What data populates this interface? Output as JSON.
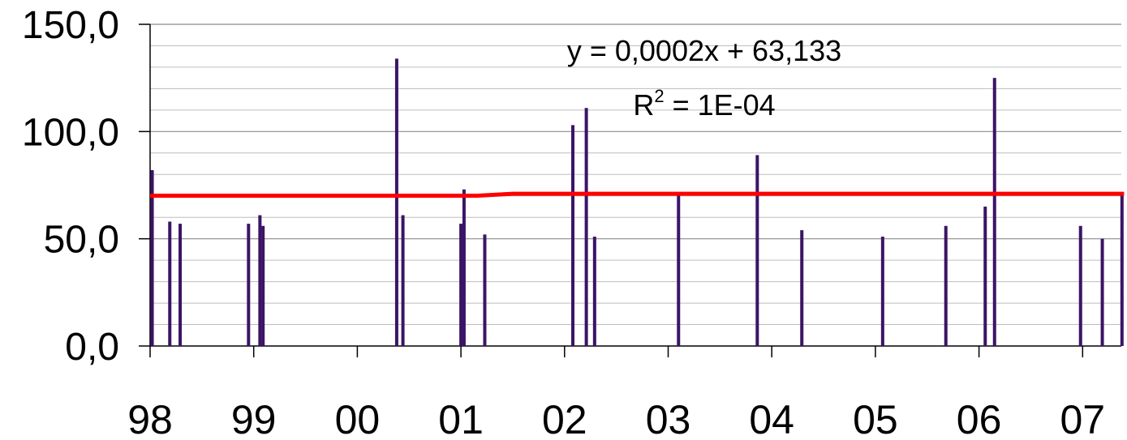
{
  "chart_data": {
    "type": "bar",
    "title": "",
    "xlabel": "",
    "ylabel": "",
    "ylim": [
      0,
      150
    ],
    "y_ticks": [
      {
        "value": 0,
        "label": "0,0"
      },
      {
        "value": 50,
        "label": "50,0"
      },
      {
        "value": 100,
        "label": "100,0"
      },
      {
        "value": 150,
        "label": "150,0"
      }
    ],
    "minor_grid_step": 10,
    "x_range": [
      1998,
      2007.4
    ],
    "x_ticks": [
      {
        "value": 1998,
        "label": "98"
      },
      {
        "value": 1999,
        "label": "99"
      },
      {
        "value": 2000,
        "label": "00"
      },
      {
        "value": 2001,
        "label": "01"
      },
      {
        "value": 2002,
        "label": "02"
      },
      {
        "value": 2003,
        "label": "03"
      },
      {
        "value": 2004,
        "label": "04"
      },
      {
        "value": 2005,
        "label": "05"
      },
      {
        "value": 2006,
        "label": "06"
      },
      {
        "value": 2007,
        "label": "07"
      }
    ],
    "grid": true,
    "bar_color": "#3b1466",
    "trend_color": "#ff0000",
    "points": [
      {
        "x": 1998.02,
        "y": 82
      },
      {
        "x": 1998.19,
        "y": 58
      },
      {
        "x": 1998.29,
        "y": 57
      },
      {
        "x": 1998.95,
        "y": 57
      },
      {
        "x": 1999.06,
        "y": 61
      },
      {
        "x": 1999.09,
        "y": 56
      },
      {
        "x": 2000.38,
        "y": 134
      },
      {
        "x": 2000.44,
        "y": 61
      },
      {
        "x": 2001.0,
        "y": 57
      },
      {
        "x": 2001.03,
        "y": 73
      },
      {
        "x": 2001.23,
        "y": 52
      },
      {
        "x": 2002.08,
        "y": 103
      },
      {
        "x": 2002.21,
        "y": 111
      },
      {
        "x": 2002.29,
        "y": 51
      },
      {
        "x": 2003.1,
        "y": 71
      },
      {
        "x": 2003.86,
        "y": 89
      },
      {
        "x": 2004.29,
        "y": 54
      },
      {
        "x": 2005.07,
        "y": 51
      },
      {
        "x": 2005.68,
        "y": 56
      },
      {
        "x": 2006.06,
        "y": 65
      },
      {
        "x": 2006.15,
        "y": 125
      },
      {
        "x": 2006.98,
        "y": 56
      },
      {
        "x": 2007.19,
        "y": 50
      },
      {
        "x": 2007.38,
        "y": 71
      }
    ],
    "trendline": [
      {
        "x": 1998.0,
        "y": 70.1
      },
      {
        "x": 2001.16,
        "y": 70.1
      },
      {
        "x": 2001.5,
        "y": 71.0
      },
      {
        "x": 2007.4,
        "y": 71.0
      }
    ],
    "annotation": {
      "equation": "y = 0,0002x + 63,133",
      "r2_prefix": "R",
      "r2_superscript": "2",
      "r2_value": " = 1E-04"
    }
  }
}
